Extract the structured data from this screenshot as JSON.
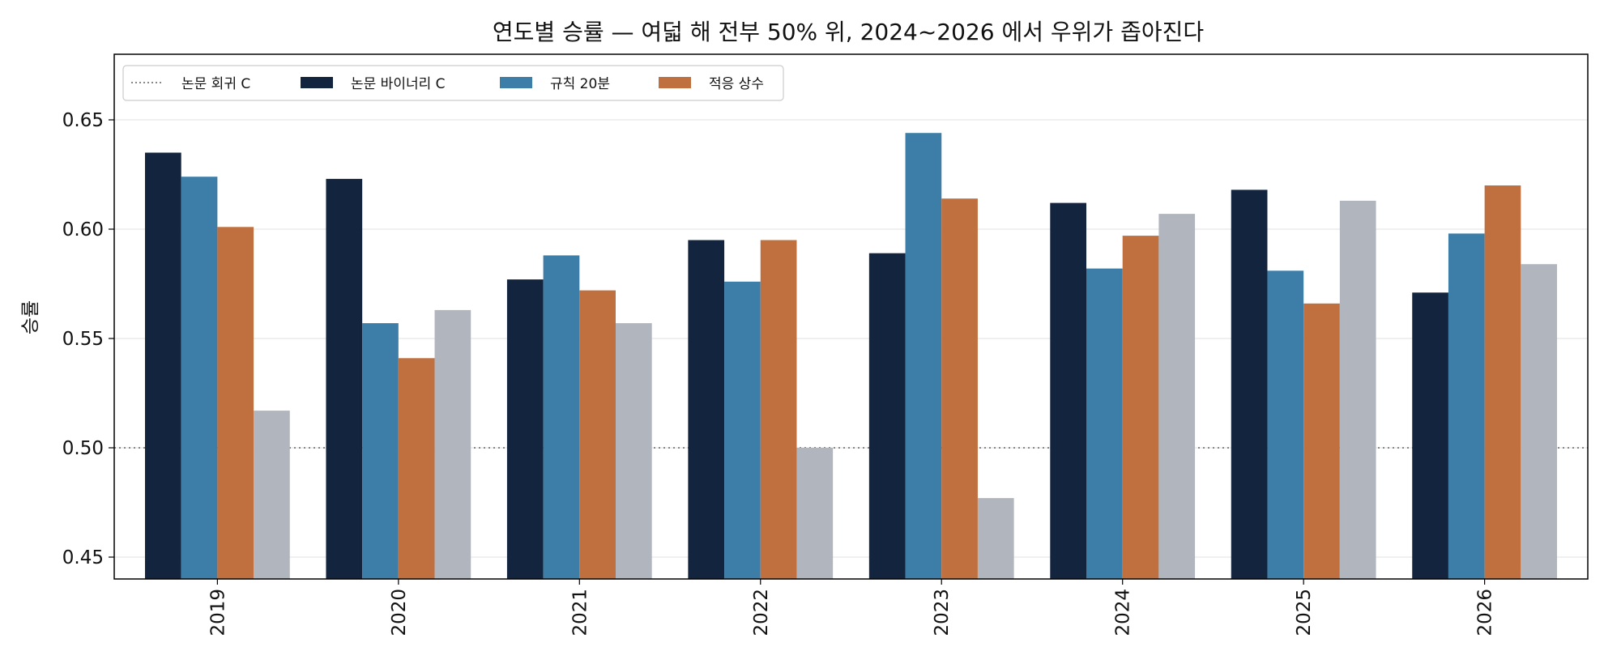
{
  "chart_data": {
    "type": "bar",
    "title": "연도별 승률 — 여덟 해 전부 50% 위, 2024~2026 에서 우위가 좁아진다",
    "xlabel": "",
    "ylabel": "승률",
    "ylim": [
      0.44,
      0.68
    ],
    "yticks": [
      0.45,
      0.5,
      0.55,
      0.6,
      0.65
    ],
    "categories": [
      "2019",
      "2020",
      "2021",
      "2022",
      "2023",
      "2024",
      "2025",
      "2026"
    ],
    "reference_line": {
      "name": "논문 회귀 C",
      "value": 0.5,
      "style": "dotted",
      "color": "#888888"
    },
    "series": [
      {
        "name": "논문 바이너리 C",
        "color": "#13243f",
        "values": [
          0.635,
          0.623,
          0.577,
          0.595,
          0.589,
          0.612,
          0.618,
          0.571
        ]
      },
      {
        "name": "규칙 20분",
        "color": "#3d7ea8",
        "values": [
          0.624,
          0.557,
          0.588,
          0.576,
          0.644,
          0.582,
          0.581,
          0.598
        ]
      },
      {
        "name": "적응 상수",
        "color": "#c0703e",
        "values": [
          0.601,
          0.541,
          0.572,
          0.595,
          0.614,
          0.597,
          0.566,
          0.62
        ]
      },
      {
        "color": "#b1b6be",
        "values": [
          0.517,
          0.563,
          0.557,
          0.5,
          0.477,
          0.607,
          0.613,
          0.584
        ]
      }
    ],
    "grid": "y",
    "legend": "top-left"
  }
}
